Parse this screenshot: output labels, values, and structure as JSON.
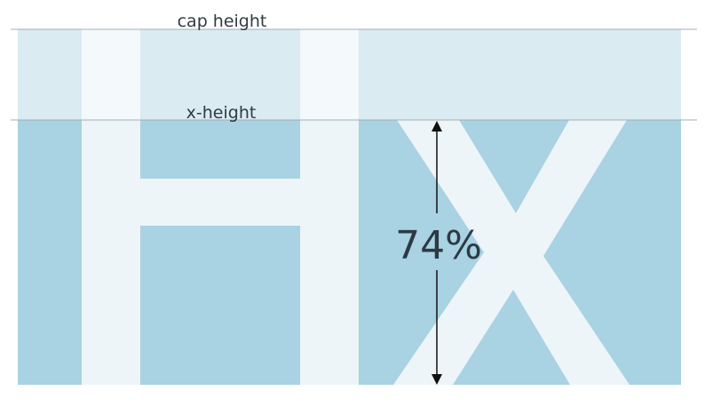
{
  "labels": {
    "cap_height": "cap height",
    "x_height": "x-height",
    "ratio": "74%"
  },
  "glyphs": [
    "H",
    "X"
  ],
  "colors": {
    "upper_band": "#daebf2",
    "lower_band": "#a9d2e2",
    "glyph_upper": "#f4f9fb",
    "glyph_lower": "#edf5f9",
    "guide_line": "#a3aeb3",
    "arrow": "#111111",
    "text": "#2f3b45"
  }
}
